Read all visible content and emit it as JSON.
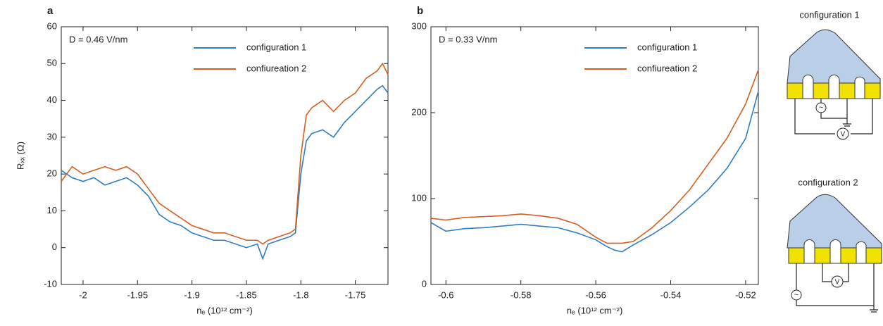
{
  "chart_data": [
    {
      "type": "line",
      "panel_label": "a",
      "annotation": "D = 0.46 V/nm",
      "xlabel": "nₑ (10¹² cm⁻²)",
      "ylabel": "Rₓₓ (Ω)",
      "x": [
        -2.02,
        -2.01,
        -2.0,
        -1.99,
        -1.98,
        -1.97,
        -1.96,
        -1.95,
        -1.94,
        -1.93,
        -1.92,
        -1.91,
        -1.9,
        -1.89,
        -1.88,
        -1.87,
        -1.86,
        -1.85,
        -1.84,
        -1.835,
        -1.83,
        -1.82,
        -1.81,
        -1.805,
        -1.8,
        -1.795,
        -1.79,
        -1.78,
        -1.77,
        -1.76,
        -1.75,
        -1.74,
        -1.73,
        -1.725,
        -1.72
      ],
      "series": [
        {
          "name": "configuration 1",
          "color": "#2f7ec4",
          "values": [
            21,
            19,
            18,
            19,
            17,
            18,
            19,
            17,
            14,
            9,
            7,
            6,
            4,
            3,
            2,
            2,
            1,
            0,
            1,
            -3,
            1,
            2,
            3,
            4,
            20,
            29,
            31,
            32,
            30,
            34,
            37,
            40,
            43,
            44,
            42
          ]
        },
        {
          "name": "confiureation 2",
          "color": "#d2601f",
          "values": [
            18,
            22,
            20,
            21,
            22,
            21,
            22,
            20,
            16,
            12,
            10,
            8,
            6,
            5,
            4,
            4,
            3,
            2,
            2,
            1,
            2,
            3,
            4,
            5,
            25,
            36,
            38,
            40,
            37,
            40,
            42,
            46,
            48,
            50,
            47
          ]
        }
      ],
      "xlim": [
        -2.02,
        -1.72
      ],
      "xticks": [
        -2,
        -1.95,
        -1.9,
        -1.85,
        -1.8,
        -1.75
      ],
      "ylim": [
        -10,
        60
      ],
      "yticks": [
        -10,
        0,
        10,
        20,
        30,
        40,
        50,
        60
      ],
      "grid": false,
      "legend": "upper right"
    },
    {
      "type": "line",
      "panel_label": "b",
      "annotation": "D = 0.33 V/nm",
      "xlabel": "nₑ (10¹² cm⁻²)",
      "x": [
        -0.604,
        -0.6,
        -0.595,
        -0.59,
        -0.585,
        -0.58,
        -0.575,
        -0.57,
        -0.565,
        -0.56,
        -0.557,
        -0.555,
        -0.553,
        -0.55,
        -0.545,
        -0.54,
        -0.535,
        -0.53,
        -0.525,
        -0.52,
        -0.5166
      ],
      "series": [
        {
          "name": "configuration 1",
          "color": "#2f7ec4",
          "values": [
            72,
            62,
            65,
            66,
            68,
            70,
            68,
            66,
            60,
            52,
            44,
            40,
            38,
            46,
            58,
            72,
            90,
            110,
            135,
            170,
            225
          ]
        },
        {
          "name": "confiureation 2",
          "color": "#d2601f",
          "values": [
            77,
            75,
            78,
            79,
            80,
            82,
            80,
            77,
            70,
            55,
            48,
            48,
            48,
            50,
            66,
            86,
            110,
            140,
            170,
            210,
            250
          ]
        }
      ],
      "xlim": [
        -0.604,
        -0.5166
      ],
      "xticks": [
        -0.6,
        -0.58,
        -0.56,
        -0.54,
        -0.52
      ],
      "ylim": [
        0,
        300
      ],
      "yticks": [
        0,
        100,
        200,
        300
      ],
      "grid": false,
      "legend": "upper right"
    }
  ],
  "diagrams": [
    {
      "title": "configuration 1",
      "source_label": "~",
      "meter_label": "V"
    },
    {
      "title": "configuration 2",
      "source_label": "~",
      "meter_label": "V"
    }
  ]
}
